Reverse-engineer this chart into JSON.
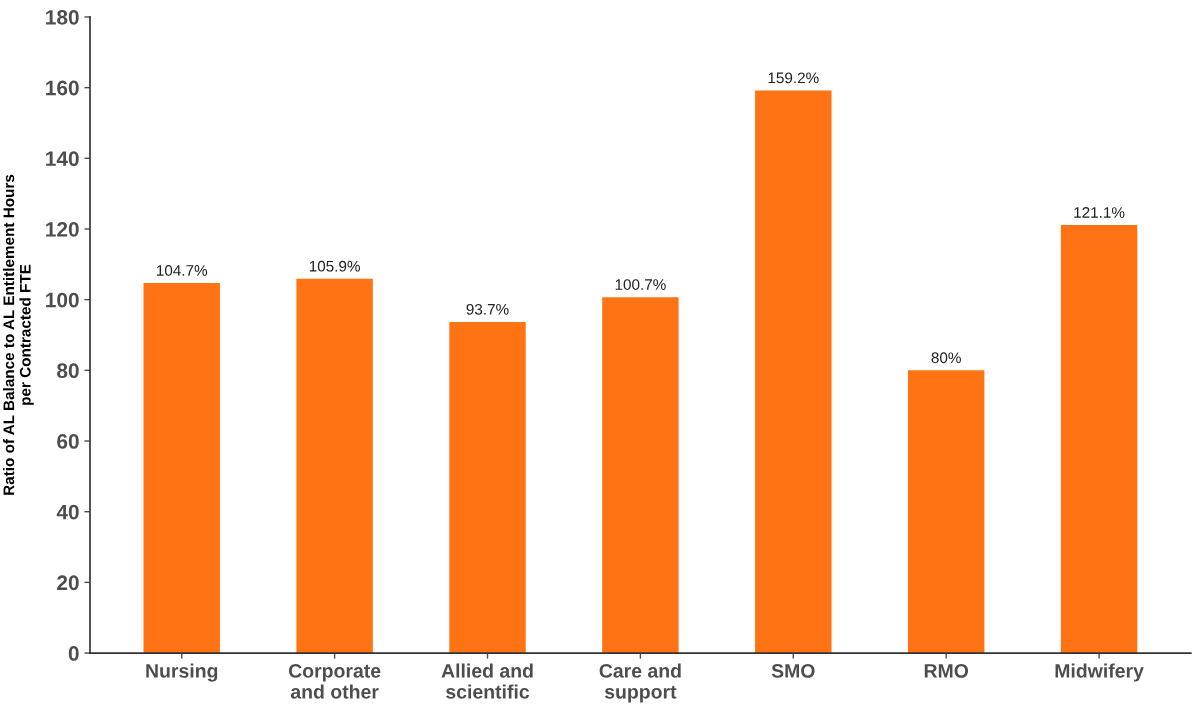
{
  "chart_data": {
    "type": "bar",
    "ylabel": "Ratio of AL Balance to AL Entitlement Hours\nper Contracted FTE",
    "categories": [
      "Nursing",
      "Corporate\nand other",
      "Allied and\nscientific",
      "Care and\nsupport",
      "SMO",
      "RMO",
      "Midwifery"
    ],
    "values": [
      104.7,
      105.9,
      93.7,
      100.7,
      159.2,
      80,
      121.1
    ],
    "value_labels": [
      "104.7%",
      "105.9%",
      "93.7%",
      "100.7%",
      "159.2%",
      "80%",
      "121.1%"
    ],
    "color": "#ff7315",
    "ylim": [
      0,
      180
    ],
    "yticks": [
      0,
      20,
      40,
      60,
      80,
      100,
      120,
      140,
      160,
      180
    ],
    "grid": false
  }
}
